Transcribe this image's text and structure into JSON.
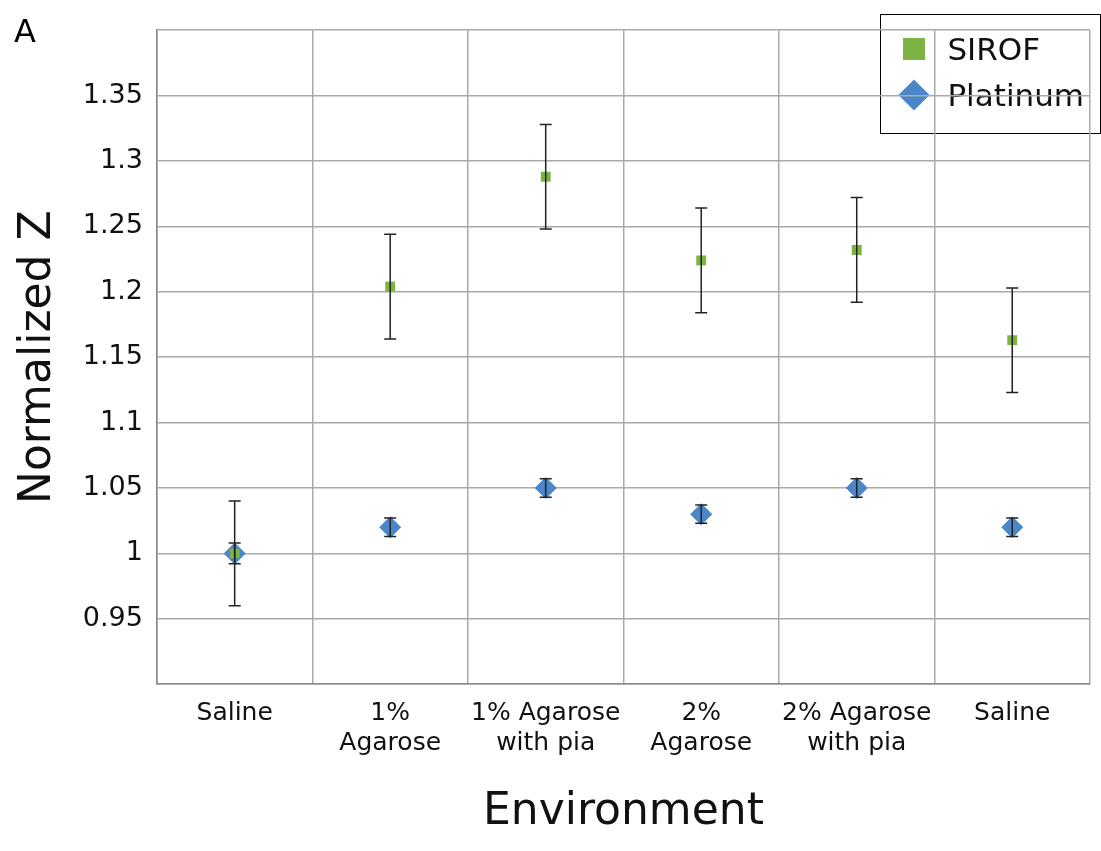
{
  "chart_data": {
    "type": "scatter",
    "xlabel": "Environment",
    "ylabel": "Normalized Z",
    "categories": [
      "Saline",
      "1%\nAgarose",
      "1% Agarose\nwith pia",
      "2%\nAgarose",
      "2% Agarose\nwith pia",
      "Saline"
    ],
    "series": [
      {
        "name": "SIROF",
        "color": "#7cb342",
        "marker": "square",
        "values": [
          1.0,
          1.204,
          1.288,
          1.224,
          1.232,
          1.163
        ],
        "errors": [
          0.04,
          0.04,
          0.04,
          0.04,
          0.04,
          0.04
        ]
      },
      {
        "name": "Platinum",
        "color": "#4a86c8",
        "marker": "diamond",
        "values": [
          1.0,
          1.02,
          1.05,
          1.03,
          1.05,
          1.02
        ],
        "errors": [
          0.008,
          0.007,
          0.007,
          0.007,
          0.007,
          0.007
        ]
      }
    ],
    "ylim": [
      0.9,
      1.4
    ],
    "yticks": [
      {
        "value": 0.9,
        "label": null
      },
      0.95,
      1,
      1.05,
      1.1,
      1.15,
      1.2,
      1.25,
      1.3,
      1.35,
      {
        "value": 1.4,
        "label": null
      }
    ],
    "grid": true,
    "legend": "top right",
    "annotations": [
      "A"
    ]
  }
}
